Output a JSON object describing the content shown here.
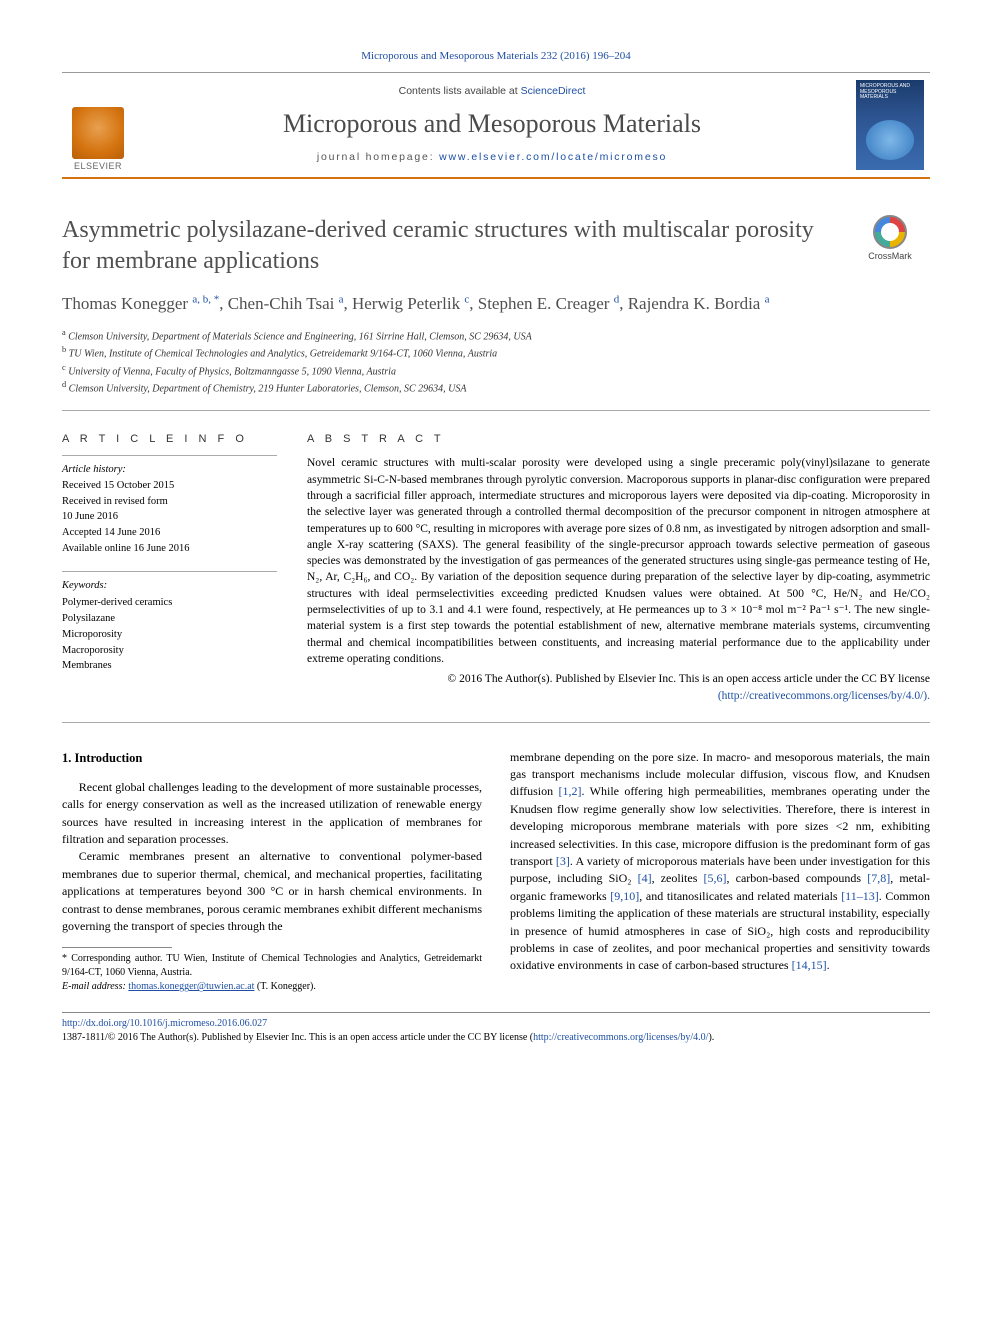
{
  "citation": "Microporous and Mesoporous Materials 232 (2016) 196–204",
  "header": {
    "contents_prefix": "Contents lists available at ",
    "contents_link": "ScienceDirect",
    "journal": "Microporous and Mesoporous Materials",
    "homepage_prefix": "journal homepage: ",
    "homepage_url": "www.elsevier.com/locate/micromeso",
    "publisher": "ELSEVIER",
    "cover_label": "MICROPOROUS AND MESOPOROUS MATERIALS"
  },
  "article": {
    "title": "Asymmetric polysilazane-derived ceramic structures with multiscalar porosity for membrane applications",
    "crossmark": "CrossMark"
  },
  "authors_html": "Thomas Konegger <sup>a, b, *</sup>, Chen-Chih Tsai <sup>a</sup>, Herwig Peterlik <sup>c</sup>, Stephen E. Creager <sup>d</sup>, Rajendra K. Bordia <sup>a</sup>",
  "affiliations": [
    {
      "sup": "a",
      "text": "Clemson University, Department of Materials Science and Engineering, 161 Sirrine Hall, Clemson, SC 29634, USA"
    },
    {
      "sup": "b",
      "text": "TU Wien, Institute of Chemical Technologies and Analytics, Getreidemarkt 9/164-CT, 1060 Vienna, Austria"
    },
    {
      "sup": "c",
      "text": "University of Vienna, Faculty of Physics, Boltzmanngasse 5, 1090 Vienna, Austria"
    },
    {
      "sup": "d",
      "text": "Clemson University, Department of Chemistry, 219 Hunter Laboratories, Clemson, SC 29634, USA"
    }
  ],
  "info": {
    "heading": "A R T I C L E  I N F O",
    "history_label": "Article history:",
    "history": [
      "Received 15 October 2015",
      "Received in revised form",
      "10 June 2016",
      "Accepted 14 June 2016",
      "Available online 16 June 2016"
    ],
    "keywords_label": "Keywords:",
    "keywords": [
      "Polymer-derived ceramics",
      "Polysilazane",
      "Microporosity",
      "Macroporosity",
      "Membranes"
    ]
  },
  "abstract": {
    "heading": "A B S T R A C T",
    "text": "Novel ceramic structures with multi-scalar porosity were developed using a single preceramic poly(vinyl)silazane to generate asymmetric Si-C-N-based membranes through pyrolytic conversion. Macroporous supports in planar-disc configuration were prepared through a sacrificial filler approach, intermediate structures and microporous layers were deposited via dip-coating. Microporosity in the selective layer was generated through a controlled thermal decomposition of the precursor component in nitrogen atmosphere at temperatures up to 600 °C, resulting in micropores with average pore sizes of 0.8 nm, as investigated by nitrogen adsorption and small-angle X-ray scattering (SAXS). The general feasibility of the single-precursor approach towards selective permeation of gaseous species was demonstrated by the investigation of gas permeances of the generated structures using single-gas permeance testing of He, N₂, Ar, C₂H₆, and CO₂. By variation of the deposition sequence during preparation of the selective layer by dip-coating, asymmetric structures with ideal permselectivities exceeding predicted Knudsen values were obtained. At 500 °C, He/N₂ and He/CO₂ permselectivities of up to 3.1 and 4.1 were found, respectively, at He permeances up to 3 × 10⁻⁸ mol m⁻² Pa⁻¹ s⁻¹. The new single-material system is a first step towards the potential establishment of new, alternative membrane materials systems, circumventing thermal and chemical incompatibilities between constituents, and increasing material performance due to the applicability under extreme operating conditions.",
    "copyright": "© 2016 The Author(s). Published by Elsevier Inc. This is an open access article under the CC BY license",
    "license_url": "(http://creativecommons.org/licenses/by/4.0/)."
  },
  "body": {
    "section_heading": "1. Introduction",
    "p1": "Recent global challenges leading to the development of more sustainable processes, calls for energy conservation as well as the increased utilization of renewable energy sources have resulted in increasing interest in the application of membranes for filtration and separation processes.",
    "p2_a": "Ceramic membranes present an alternative to conventional polymer-based membranes due to superior thermal, chemical, and mechanical properties, facilitating applications at temperatures beyond 300 °C or in harsh chemical environments. In contrast to dense membranes, porous ceramic membranes exhibit different mechanisms governing the transport of species through the",
    "p2_b1": "membrane depending on the pore size. In macro- and mesoporous materials, the main gas transport mechanisms include molecular diffusion, viscous flow, and Knudsen diffusion ",
    "ref12": "[1,2]",
    "p2_b2": ". While offering high permeabilities, membranes operating under the Knudsen flow regime generally show low selectivities. Therefore, there is interest in developing microporous membrane materials with pore sizes <2 nm, exhibiting increased selectivities. In this case, micropore diffusion is the predominant form of gas transport ",
    "ref3": "[3]",
    "p2_b3": ". A variety of microporous materials have been under investigation for this purpose, including SiO₂ ",
    "ref4": "[4]",
    "p2_b4": ", zeolites ",
    "ref56": "[5,6]",
    "p2_b5": ", carbon-based compounds ",
    "ref78": "[7,8]",
    "p2_b6": ", metal-organic frameworks ",
    "ref910": "[9,10]",
    "p2_b7": ", and titanosilicates and related materials ",
    "ref1113": "[11–13]",
    "p2_b8": ". Common problems limiting the application of these materials are structural instability, especially in presence of humid atmospheres in case of SiO₂, high costs and reproducibility problems in case of zeolites, and poor mechanical properties and sensitivity towards oxidative environments in case of carbon-based structures ",
    "ref1415": "[14,15]",
    "p2_b9": "."
  },
  "corresponding": {
    "label": "* Corresponding author. TU Wien, Institute of Chemical Technologies and Analytics, Getreidemarkt 9/164-CT, 1060 Vienna, Austria.",
    "email_label": "E-mail address: ",
    "email": "thomas.konegger@tuwien.ac.at",
    "email_suffix": " (T. Konegger)."
  },
  "footer": {
    "doi": "http://dx.doi.org/10.1016/j.micromeso.2016.06.027",
    "issn_line": "1387-1811/© 2016 The Author(s). Published by Elsevier Inc. This is an open access article under the CC BY license (",
    "license_url": "http://creativecommons.org/licenses/by/4.0/",
    "license_close": ")."
  },
  "colors": {
    "link": "#1e4fa3",
    "accent": "#d4730f",
    "title_gray": "#505050"
  }
}
